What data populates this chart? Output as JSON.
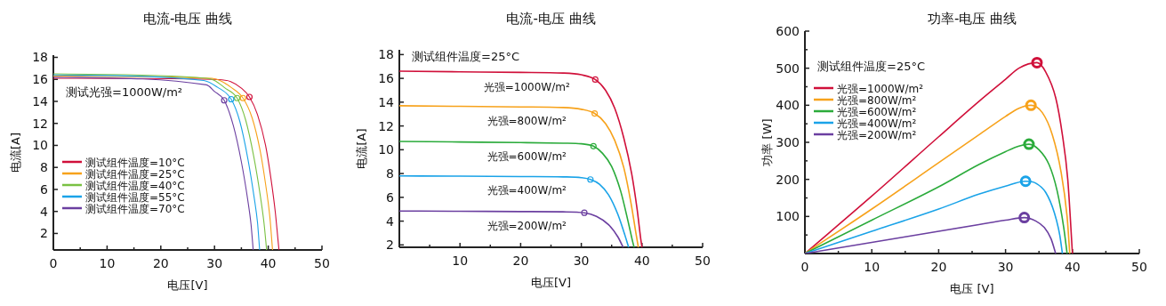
{
  "chart_data": [
    {
      "type": "line",
      "title": "电流-电压 曲线",
      "xlabel": "电压[V]",
      "ylabel": "电流[A]",
      "xlim": [
        0,
        50
      ],
      "ylim": [
        0.5,
        18.2
      ],
      "xticks": [
        0,
        {
          "value": 5,
          "label": null
        },
        10,
        {
          "value": 15,
          "label": null
        },
        20,
        {
          "value": 25,
          "label": null
        },
        30,
        {
          "value": 35,
          "label": null
        },
        40,
        {
          "value": 45,
          "label": null
        },
        50
      ],
      "yticks": [
        2,
        4,
        6,
        8,
        10,
        12,
        14,
        16,
        18
      ],
      "legend": "bottom left",
      "grid": false,
      "annotations": [
        "测试光强=1000W/m²"
      ],
      "series": [
        {
          "name": "测试组件温度=10°C",
          "color": "#d0103a",
          "x": [
            0,
            30,
            33,
            35,
            36.5,
            38,
            39.5,
            40.5,
            41.3,
            41.8,
            42
          ],
          "values": [
            16.1,
            16.0,
            15.8,
            15.2,
            14.4,
            12.8,
            10,
            7,
            4,
            1.5,
            0.5
          ]
        },
        {
          "name": "测试组件温度=25°C",
          "color": "#f7a21b",
          "x": [
            0,
            29.5,
            31,
            33,
            35.3,
            37,
            38.5,
            39.5,
            40.3,
            40.8
          ],
          "values": [
            16.3,
            16.1,
            15.9,
            15.3,
            14.3,
            12.5,
            9.5,
            6.5,
            3.5,
            0.5
          ]
        },
        {
          "name": "测试组件温度=40°C",
          "color": "#7ac143",
          "x": [
            0,
            28.5,
            30,
            32,
            34.2,
            35.8,
            37.3,
            38.5,
            39.2,
            39.7
          ],
          "values": [
            16.5,
            16.1,
            15.9,
            15.2,
            14.3,
            12.3,
            9,
            5.5,
            3,
            0.5
          ]
        },
        {
          "name": "测试组件温度=55°C",
          "color": "#1aa3e8",
          "x": [
            0,
            28,
            30.5,
            33.1,
            34.7,
            36.2,
            37.4,
            38,
            38.4
          ],
          "values": [
            16.4,
            15.9,
            15.3,
            14.2,
            12.2,
            8.8,
            5.2,
            3,
            0.5
          ]
        },
        {
          "name": "测试组件温度=70°C",
          "color": "#6b3fa0",
          "x": [
            0,
            28.5,
            30,
            31.8,
            33.5,
            35,
            36.2,
            36.8,
            37.2
          ],
          "values": [
            16.2,
            15.5,
            14.9,
            14.1,
            11.8,
            8.5,
            5,
            2.8,
            0.5
          ]
        },
        {
          "type": "scatter",
          "marker": "circle",
          "x": [
            36.5,
            35.3,
            34.2,
            33.1,
            31.8
          ],
          "values": [
            14.4,
            14.3,
            14.3,
            14.2,
            14.1
          ],
          "colors": [
            "#d0103a",
            "#f7a21b",
            "#7ac143",
            "#1aa3e8",
            "#6b3fa0"
          ]
        }
      ]
    },
    {
      "type": "line",
      "title": "电流-电压 曲线",
      "xlabel": "电压[V]",
      "ylabel": "电流[A]",
      "xlim": [
        0,
        50
      ],
      "ylim": [
        1.8,
        18.4
      ],
      "xticks": [
        {
          "value": 5,
          "label": null
        },
        10,
        {
          "value": 15,
          "label": null
        },
        20,
        {
          "value": 25,
          "label": null
        },
        30,
        {
          "value": 35,
          "label": null
        },
        40,
        {
          "value": 45,
          "label": null
        },
        50
      ],
      "yticks": [
        2,
        4,
        6,
        8,
        10,
        12,
        14,
        16,
        18
      ],
      "legend": false,
      "grid": false,
      "annotations": [
        "测试组件温度=25°C"
      ],
      "series": [
        {
          "name": "光强=1000W/m²",
          "color": "#d0103a",
          "x": [
            0,
            10,
            20,
            27,
            30,
            32.3,
            34,
            35.5,
            37,
            38.3,
            39.2,
            39.8,
            40
          ],
          "values": [
            16.6,
            16.55,
            16.5,
            16.45,
            16.3,
            15.9,
            15,
            13.5,
            11,
            8,
            5,
            2.5,
            1.8
          ]
        },
        {
          "name": "光强=800W/m²",
          "color": "#f7a21b",
          "x": [
            0,
            10,
            20,
            27,
            30,
            32.2,
            34,
            35.5,
            37,
            38.2,
            39,
            39.4
          ],
          "values": [
            13.7,
            13.65,
            13.6,
            13.55,
            13.4,
            13.05,
            12.2,
            10.8,
            8.5,
            5.5,
            3,
            1.8
          ]
        },
        {
          "name": "光强=600W/m²",
          "color": "#2bab3b",
          "x": [
            0,
            10,
            20,
            27,
            30,
            32,
            33.5,
            35,
            36.5,
            37.7,
            38.5,
            38.7
          ],
          "values": [
            10.7,
            10.65,
            10.6,
            10.55,
            10.5,
            10.3,
            9.7,
            8.6,
            6.5,
            4,
            2.2,
            1.8
          ]
        },
        {
          "name": "光强=400W/m²",
          "color": "#1aa3e8",
          "x": [
            0,
            10,
            20,
            27,
            30,
            31.5,
            33,
            34.5,
            36,
            37.2,
            37.8
          ],
          "values": [
            7.8,
            7.78,
            7.75,
            7.72,
            7.65,
            7.5,
            7.1,
            6.2,
            4.6,
            2.8,
            1.8
          ]
        },
        {
          "name": "光强=200W/m²",
          "color": "#6b3fa0",
          "x": [
            0,
            10,
            20,
            27,
            30.5,
            32.5,
            34.5,
            36,
            36.9
          ],
          "values": [
            4.85,
            4.83,
            4.8,
            4.78,
            4.7,
            4.4,
            3.7,
            2.7,
            1.8
          ]
        },
        {
          "type": "scatter",
          "marker": "circle",
          "x": [
            32.3,
            32.2,
            32,
            31.5,
            30.5
          ],
          "values": [
            15.9,
            13.05,
            10.3,
            7.5,
            4.7
          ],
          "colors": [
            "#d0103a",
            "#f7a21b",
            "#2bab3b",
            "#1aa3e8",
            "#6b3fa0"
          ]
        }
      ]
    },
    {
      "type": "line",
      "title": "功率-电压 曲线",
      "xlabel": "电压 [V]",
      "ylabel": "功率 [W]",
      "xlim": [
        0,
        50
      ],
      "ylim": [
        0,
        600
      ],
      "xticks": [
        0,
        {
          "value": 5,
          "label": null
        },
        10,
        {
          "value": 15,
          "label": null
        },
        20,
        {
          "value": 25,
          "label": null
        },
        30,
        {
          "value": 35,
          "label": null
        },
        40,
        {
          "value": 45,
          "label": null
        },
        50
      ],
      "yticks": [
        {
          "value": 50,
          "label": null
        },
        100,
        {
          "value": 150,
          "label": null
        },
        200,
        {
          "value": 250,
          "label": null
        },
        300,
        {
          "value": 350,
          "label": null
        },
        400,
        {
          "value": 450,
          "label": null
        },
        500,
        {
          "value": 550,
          "label": null
        },
        600
      ],
      "legend": "top left",
      "grid": false,
      "annotations": [
        "测试组件温度=25°C"
      ],
      "series": [
        {
          "name": "光强=1000W/m²",
          "color": "#d0103a",
          "x": [
            0,
            10,
            20,
            26,
            30,
            32,
            34.7,
            36,
            37.5,
            38.5,
            39.3,
            40
          ],
          "values": [
            0,
            155,
            315,
            410,
            470,
            500,
            515,
            490,
            420,
            320,
            200,
            0
          ]
        },
        {
          "name": "光强=800W/m²",
          "color": "#f7a21b",
          "x": [
            0,
            10,
            20,
            26,
            30,
            32,
            33.8,
            35.5,
            37,
            38.3,
            39.2,
            39.6
          ],
          "values": [
            0,
            120,
            245,
            320,
            370,
            392,
            400,
            380,
            320,
            220,
            100,
            0
          ]
        },
        {
          "name": "光强=600W/m²",
          "color": "#2bab3b",
          "x": [
            0,
            10,
            20,
            26,
            30,
            32,
            33.5,
            35,
            36.5,
            37.7,
            38.7,
            39.2
          ],
          "values": [
            0,
            90,
            180,
            240,
            275,
            290,
            295,
            280,
            240,
            170,
            70,
            0
          ]
        },
        {
          "name": "光强=400W/m²",
          "color": "#1aa3e8",
          "x": [
            0,
            10,
            20,
            26,
            30,
            33,
            34.5,
            36,
            37.3,
            38.1,
            38.5
          ],
          "values": [
            0,
            60,
            120,
            160,
            182,
            195,
            190,
            165,
            110,
            50,
            0
          ]
        },
        {
          "name": "光强=200W/m²",
          "color": "#6b3fa0",
          "x": [
            0,
            10,
            20,
            26,
            30,
            32.8,
            34.5,
            35.8,
            36.8,
            37.5
          ],
          "values": [
            0,
            30,
            60,
            78,
            90,
            97,
            88,
            70,
            40,
            0
          ]
        },
        {
          "type": "scatter",
          "marker": "circle",
          "x": [
            34.7,
            33.8,
            33.5,
            33,
            32.8
          ],
          "values": [
            515,
            400,
            295,
            195,
            97
          ],
          "colors": [
            "#d0103a",
            "#f7a21b",
            "#2bab3b",
            "#1aa3e8",
            "#6b3fa0"
          ]
        }
      ]
    }
  ]
}
